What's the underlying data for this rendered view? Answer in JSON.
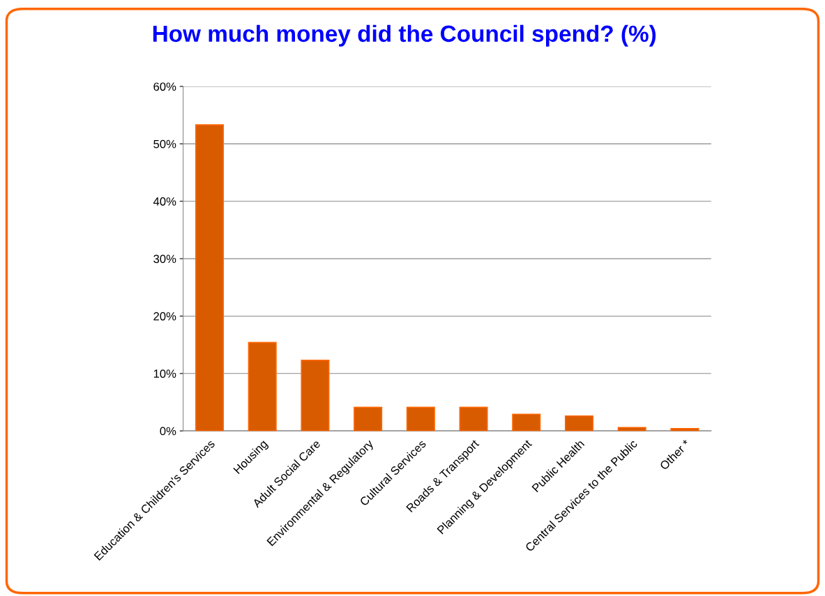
{
  "chart_data": {
    "type": "bar",
    "title": "How much money did the Council spend? (%)",
    "categories": [
      "Education & Children's Services",
      "Housing",
      "Adult Social Care",
      "Environmental & Regulatory",
      "Cultural Services",
      "Roads & Transport",
      "Planning & Development",
      "Public Health",
      "Central Services to the Public",
      "Other *"
    ],
    "values": [
      53.3,
      15.4,
      12.3,
      4.1,
      4.1,
      4.1,
      2.9,
      2.6,
      0.6,
      0.4
    ],
    "color": "#d95b00",
    "ylim": [
      0,
      60
    ],
    "yticks": [
      {
        "value": 0,
        "label": "0%"
      },
      {
        "value": 10,
        "label": "10%"
      },
      {
        "value": 20,
        "label": "20%"
      },
      {
        "value": 30,
        "label": "30%"
      },
      {
        "value": 40,
        "label": "40%"
      },
      {
        "value": 50,
        "label": "50%"
      },
      {
        "value": 60,
        "label": "60%"
      }
    ],
    "grid": "y"
  }
}
